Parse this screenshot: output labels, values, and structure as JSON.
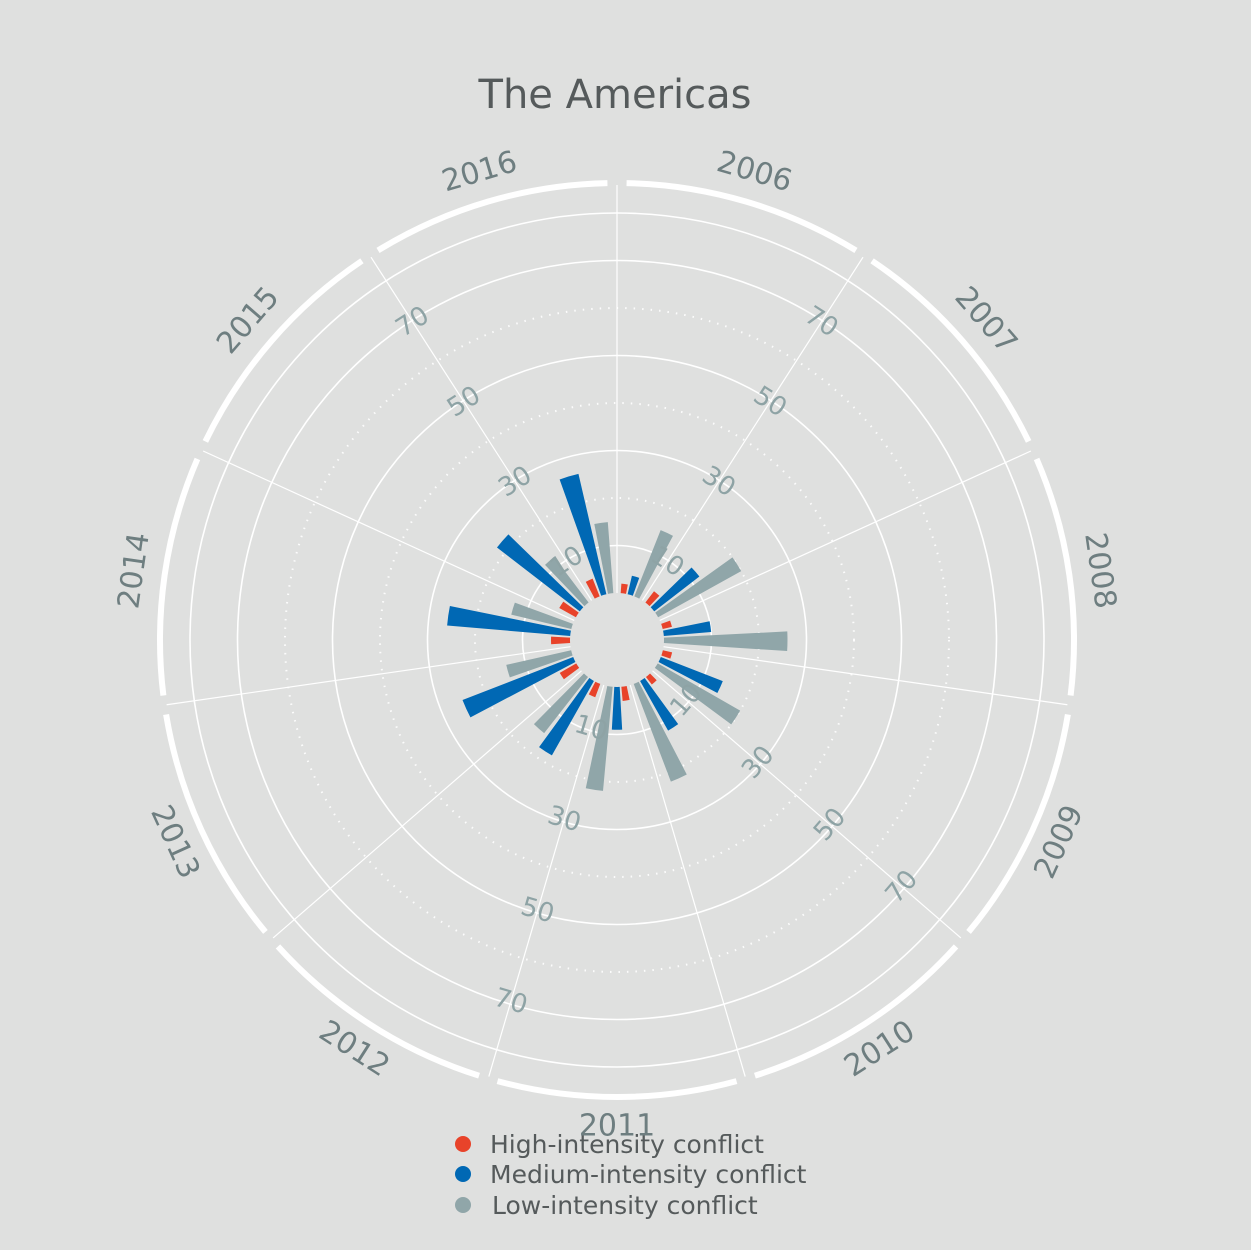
{
  "chart_data": {
    "type": "bar",
    "subtype": "radial-grouped-bar",
    "title": "The Americas",
    "categories": [
      "2006",
      "2007",
      "2008",
      "2009",
      "2010",
      "2011",
      "2012",
      "2013",
      "2014",
      "2015",
      "2016"
    ],
    "series": [
      {
        "name": "High-intensity conflict",
        "color": "#e8432a",
        "values": [
          2,
          3,
          2,
          2,
          2,
          3,
          3,
          4,
          4,
          4,
          4
        ]
      },
      {
        "name": "Medium-intensity conflict",
        "color": "#0068b4",
        "values": [
          4,
          12,
          10,
          14,
          12,
          9,
          18,
          25,
          26,
          22,
          26
        ]
      },
      {
        "name": "Low-intensity conflict",
        "color": "#90a6a9",
        "values": [
          15,
          20,
          26,
          20,
          22,
          22,
          15,
          14,
          13,
          12,
          15
        ]
      }
    ],
    "radial_ticks": [
      10,
      30,
      50,
      70
    ],
    "tick_labels": [
      "10",
      "30",
      "50",
      "70"
    ],
    "rlim": [
      0,
      80
    ],
    "grid": true,
    "legend_position": "bottom-center"
  },
  "colors": {
    "background": "#dfe0df",
    "grid": "#ffffff",
    "title": "#555a5b",
    "year_label": "#6e7e80",
    "tick_label": "#8ea3a5"
  }
}
